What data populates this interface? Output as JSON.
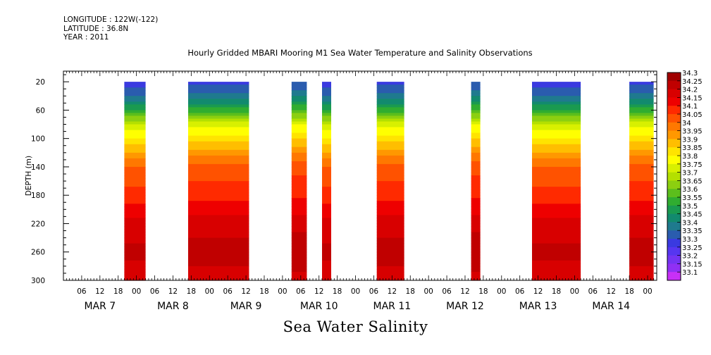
{
  "header": {
    "longitude": "LONGITUDE : 122W(-122)",
    "latitude": "LATITUDE : 36.8N",
    "year": "YEAR : 2011"
  },
  "variable_label": "Sea Water Salinity",
  "chart_data": {
    "type": "heatmap",
    "title": "Hourly Gridded MBARI Mooring M1 Sea Water Temperature and Salinity Observations",
    "xlabel": "",
    "ylabel": "DEPTH (m)",
    "ylim": [
      300,
      5
    ],
    "y_reversed": true,
    "y_ticks": [
      20,
      60,
      100,
      140,
      180,
      220,
      260,
      300
    ],
    "x_hour_ticks": [
      "06",
      "12",
      "18",
      "00",
      "06",
      "12",
      "18",
      "00",
      "06",
      "12",
      "18",
      "00",
      "06",
      "12",
      "18",
      "00",
      "06",
      "12",
      "18",
      "00",
      "06",
      "12",
      "18",
      "00",
      "06",
      "12",
      "18",
      "00",
      "06",
      "12",
      "18",
      "00"
    ],
    "x_day_labels": [
      "MAR 7",
      "MAR 8",
      "MAR 9",
      "MAR 10",
      "MAR 11",
      "MAR 12",
      "MAR 13",
      "MAR 14"
    ],
    "x_range_hours_from_mar7_00": [
      0,
      171
    ],
    "data_segments_hours": [
      [
        20,
        27
      ],
      [
        41,
        61
      ],
      [
        75,
        80
      ],
      [
        85,
        88
      ],
      [
        103,
        112
      ],
      [
        134,
        137
      ],
      [
        154,
        170
      ],
      [
        186,
        194
      ]
    ],
    "depth_profile": [
      {
        "depth": 20,
        "value": 33.3
      },
      {
        "depth": 40,
        "value": 33.4
      },
      {
        "depth": 60,
        "value": 33.55
      },
      {
        "depth": 80,
        "value": 33.75
      },
      {
        "depth": 100,
        "value": 33.85
      },
      {
        "depth": 120,
        "value": 33.95
      },
      {
        "depth": 140,
        "value": 34.05
      },
      {
        "depth": 180,
        "value": 34.1
      },
      {
        "depth": 220,
        "value": 34.2
      },
      {
        "depth": 260,
        "value": 34.25
      },
      {
        "depth": 300,
        "value": 34.2
      }
    ],
    "colorbar": {
      "levels": [
        "34.3",
        "34.25",
        "34.2",
        "34.15",
        "34.1",
        "34.05",
        "34",
        "33.95",
        "33.9",
        "33.85",
        "33.8",
        "33.75",
        "33.7",
        "33.65",
        "33.6",
        "33.55",
        "33.5",
        "33.45",
        "33.4",
        "33.35",
        "33.3",
        "33.25",
        "33.2",
        "33.15",
        "33.1"
      ],
      "colors": [
        "#a00000",
        "#c00000",
        "#d80000",
        "#ee0000",
        "#ff2a00",
        "#ff5200",
        "#ff7800",
        "#ff9800",
        "#ffbe00",
        "#ffe400",
        "#ffff00",
        "#d8f000",
        "#b4e000",
        "#8ccf10",
        "#5cbe1c",
        "#30ad30",
        "#1a9a50",
        "#128a6e",
        "#1f7a8e",
        "#2a5cae",
        "#3a3ae0",
        "#5636f0",
        "#7434f2",
        "#9030f4",
        "#c830f6"
      ]
    }
  }
}
